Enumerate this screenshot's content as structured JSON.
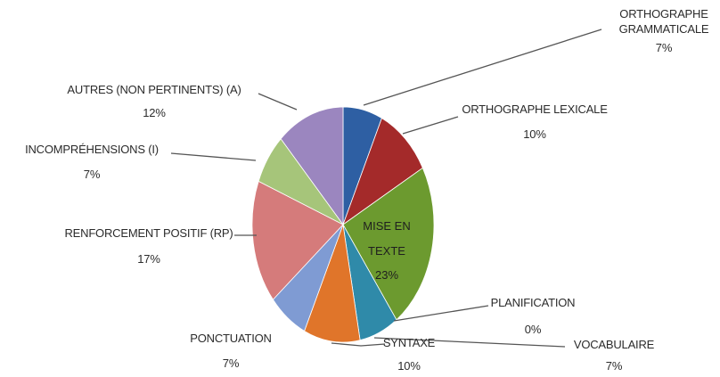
{
  "chart_data": {
    "type": "pie",
    "start_angle_deg": 0,
    "direction": "clockwise",
    "slices": [
      {
        "name": "ORTHOGRAPHE GRAMMATICALE",
        "label_lines": [
          "ORTHOGRAPHE",
          "GRAMMATICALE"
        ],
        "value": 7,
        "value_label": "7%",
        "color": "#2e5fa3"
      },
      {
        "name": "ORTHOGRAPHE LEXICALE",
        "label_lines": [
          "ORTHOGRAPHE LEXICALE"
        ],
        "value": 10,
        "value_label": "10%",
        "color": "#a42a2a"
      },
      {
        "name": "MISE EN TEXTE",
        "label_lines": [
          "MISE EN",
          "TEXTE"
        ],
        "value": 23,
        "value_label": "23%",
        "color": "#6c9a2f"
      },
      {
        "name": "PLANIFICATION",
        "label_lines": [
          "PLANIFICATION"
        ],
        "value": 0,
        "value_label": "0%",
        "color": "#5b3f87"
      },
      {
        "name": "VOCABULAIRE",
        "label_lines": [
          "VOCABULAIRE"
        ],
        "value": 7,
        "value_label": "7%",
        "color": "#2f8aa9"
      },
      {
        "name": "SYNTAXE",
        "label_lines": [
          "SYNTAXE"
        ],
        "value": 10,
        "value_label": "10%",
        "color": "#e0752a"
      },
      {
        "name": "PONCTUATION",
        "label_lines": [
          "PONCTUATION"
        ],
        "value": 7,
        "value_label": "7%",
        "color": "#7f9bd3"
      },
      {
        "name": "RENFORCEMENT POSITIF (RP)",
        "label_lines": [
          "RENFORCEMENT POSITIF (RP)"
        ],
        "value": 17,
        "value_label": "17%",
        "color": "#d57b7b"
      },
      {
        "name": "INCOMPRÉHENSIONS (I)",
        "label_lines": [
          "INCOMPRÉHENSIONS (I)"
        ],
        "value": 7,
        "value_label": "7%",
        "color": "#a6c57a"
      },
      {
        "name": "AUTRES (NON PERTINENTS) (A)",
        "label_lines": [
          "AUTRES (NON PERTINENTS) (A)"
        ],
        "value": 12,
        "value_label": "12%",
        "color": "#9b86bf"
      }
    ]
  }
}
